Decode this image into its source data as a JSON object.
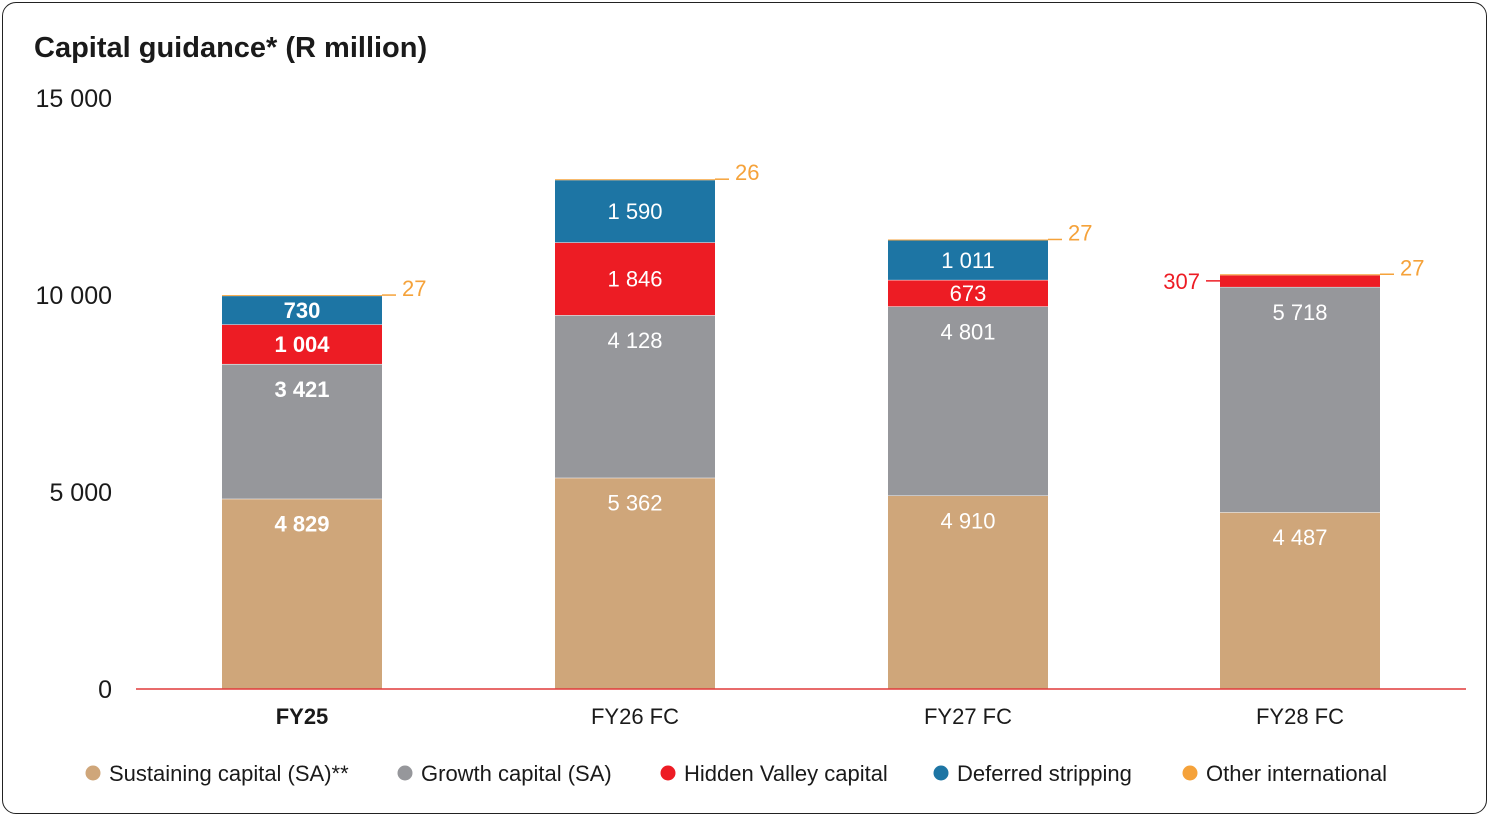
{
  "chart_data": {
    "type": "bar",
    "stacked": true,
    "title": "Capital guidance* (R million)",
    "xlabel": "",
    "ylabel": "",
    "ylim": [
      0,
      15000
    ],
    "yticks": [
      0,
      5000,
      10000,
      15000
    ],
    "ytick_labels": [
      "0",
      "5 000",
      "10 000",
      "15 000"
    ],
    "categories": [
      "FY25",
      "FY26 FC",
      "FY27 FC",
      "FY28 FC"
    ],
    "bold_categories": [
      "FY25"
    ],
    "colors": {
      "sustaining": "#cfa67a",
      "growth": "#96979b",
      "hidden_valley": "#ed1c24",
      "deferred": "#1d75a4",
      "other": "#f5a23a",
      "axis": "#e03a3a"
    },
    "series": [
      {
        "name": "Sustaining capital (SA)**",
        "key": "sustaining",
        "values": [
          4829,
          5362,
          4910,
          4487
        ],
        "labels": [
          "4 829",
          "5 362",
          "4 910",
          "4 487"
        ]
      },
      {
        "name": "Growth capital (SA)",
        "key": "growth",
        "values": [
          3421,
          4128,
          4801,
          5718
        ],
        "labels": [
          "3 421",
          "4 128",
          "4 801",
          "5 718"
        ]
      },
      {
        "name": "Hidden Valley capital",
        "key": "hidden_valley",
        "values": [
          1004,
          1846,
          673,
          307
        ],
        "labels": [
          "1 004",
          "1 846",
          "673",
          "307"
        ]
      },
      {
        "name": "Deferred stripping",
        "key": "deferred",
        "values": [
          730,
          1590,
          1011,
          0
        ],
        "labels": [
          "730",
          "1 590",
          "1 011",
          ""
        ]
      },
      {
        "name": "Other international",
        "key": "other",
        "values": [
          27,
          26,
          27,
          27
        ],
        "labels": [
          "27",
          "26",
          "27",
          "27"
        ]
      }
    ],
    "legend_position": "bottom"
  }
}
